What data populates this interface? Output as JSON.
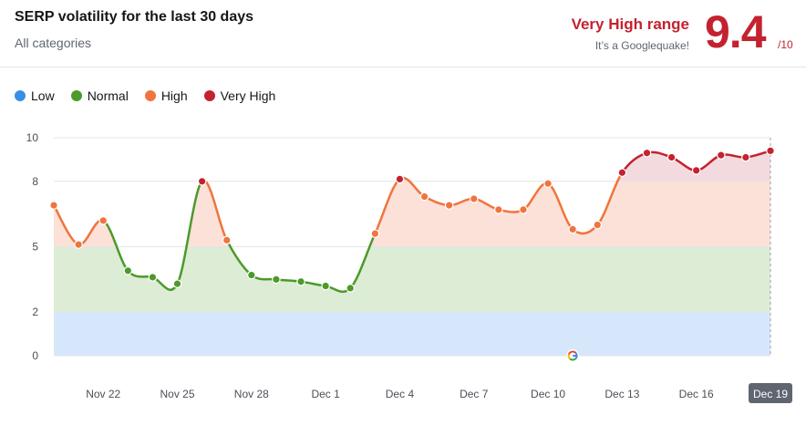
{
  "header": {
    "title": "SERP volatility for the last 30 days",
    "subtitle": "All categories",
    "range_title": "Very High range",
    "range_subtitle": "It’s a Googlequake!",
    "score": "9.4",
    "score_max": "/10"
  },
  "legend": [
    {
      "label": "Low",
      "color": "#3a8ee6"
    },
    {
      "label": "Normal",
      "color": "#4c9a2a"
    },
    {
      "label": "High",
      "color": "#f0743e"
    },
    {
      "label": "Very High",
      "color": "#c4222f"
    }
  ],
  "chart_data": {
    "type": "area",
    "y_ticks": [
      0,
      2,
      5,
      8,
      10
    ],
    "ylim": [
      0,
      10
    ],
    "x_tick_labels": [
      "Nov 22",
      "Nov 25",
      "Nov 28",
      "Dec 1",
      "Dec 4",
      "Dec 7",
      "Dec 10",
      "Dec 13",
      "Dec 16",
      "Dec 19"
    ],
    "highlighted_x_label": "Dec 19",
    "bands": [
      {
        "name": "Low",
        "from": 0,
        "to": 2,
        "color": "#d7e7fb"
      },
      {
        "name": "Normal",
        "from": 2,
        "to": 5,
        "color": "#dcecd5"
      },
      {
        "name": "High",
        "from": 5,
        "to": 8,
        "color": "#fbe1d8"
      },
      {
        "name": "Very High",
        "from": 8,
        "to": 10,
        "color": "#f3dade"
      }
    ],
    "x": [
      "Nov 20",
      "Nov 21",
      "Nov 22",
      "Nov 23",
      "Nov 24",
      "Nov 25",
      "Nov 26",
      "Nov 27",
      "Nov 28",
      "Nov 29",
      "Nov 30",
      "Dec 1",
      "Dec 2",
      "Dec 3",
      "Dec 4",
      "Dec 5",
      "Dec 6",
      "Dec 7",
      "Dec 8",
      "Dec 9",
      "Dec 10",
      "Dec 11",
      "Dec 12",
      "Dec 13",
      "Dec 14",
      "Dec 15",
      "Dec 16",
      "Dec 17",
      "Dec 18",
      "Dec 19"
    ],
    "values": [
      6.9,
      5.1,
      6.2,
      3.9,
      3.6,
      3.3,
      8.0,
      5.3,
      3.7,
      3.5,
      3.4,
      3.2,
      3.1,
      5.6,
      8.1,
      7.3,
      6.9,
      7.2,
      6.7,
      6.7,
      7.9,
      5.8,
      6.0,
      8.4,
      9.3,
      9.1,
      8.5,
      9.2,
      9.1,
      9.4
    ],
    "annotation": {
      "x": "Dec 11",
      "icon": "google-g-icon"
    }
  }
}
